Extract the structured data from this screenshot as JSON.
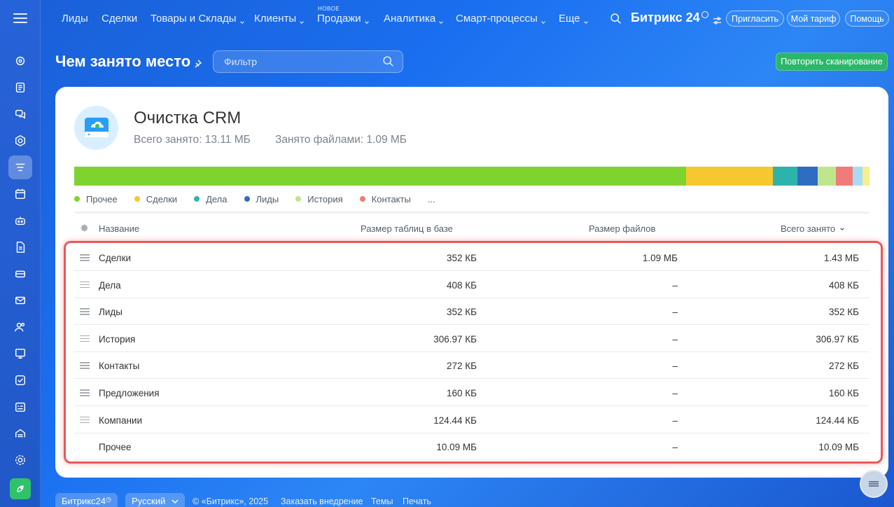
{
  "topnav": {
    "items": [
      {
        "label": "Лиды",
        "dropdown": false
      },
      {
        "label": "Сделки",
        "dropdown": false
      },
      {
        "label": "Товары и Склады",
        "dropdown": true
      },
      {
        "label": "Клиенты",
        "dropdown": true
      },
      {
        "label": "Продажи",
        "dropdown": true,
        "badge": "НОВОЕ"
      },
      {
        "label": "Аналитика",
        "dropdown": true
      },
      {
        "label": "Смарт-процессы",
        "dropdown": true
      },
      {
        "label": "Еще",
        "dropdown": true
      }
    ],
    "brand": "Битрикс 24",
    "invite_label": "Пригласить",
    "tariff_label": "Мой тариф",
    "help_label": "Помощь"
  },
  "sidebar": {
    "icons": [
      "chat-bubbles-icon",
      "feed-icon",
      "messenger-icon",
      "hexagon-icon",
      "crm-icon",
      "calendar-icon",
      "robot-icon",
      "document-icon",
      "store-icon",
      "mail-icon",
      "users-icon",
      "presentation-icon",
      "tasks-icon",
      "schedule-icon",
      "sites-icon",
      "settings-icon",
      "rocket-icon"
    ],
    "active": "crm-icon"
  },
  "page": {
    "title": "Чем занято место",
    "filter_placeholder": "Фильтр",
    "rescan_label": "Повторить сканирование"
  },
  "crm": {
    "title": "Очистка CRM",
    "total_label": "Всего занято: 13.11 МБ",
    "files_label": "Занято файлами: 1.09 МБ"
  },
  "usage_bar": [
    {
      "name": "Прочее",
      "value": 10.09,
      "color": "#7fd32e"
    },
    {
      "name": "Сделки",
      "value": 1.43,
      "color": "#f5c830"
    },
    {
      "name": "Дела",
      "value": 0.4,
      "color": "#2eb3ac"
    },
    {
      "name": "Лиды",
      "value": 0.34,
      "color": "#2f6cc4"
    },
    {
      "name": "История",
      "value": 0.3,
      "color": "#bfe68c"
    },
    {
      "name": "Контакты",
      "value": 0.27,
      "color": "#f07b78"
    },
    {
      "name": "Предложения",
      "value": 0.16,
      "color": "#a7dcf6"
    },
    {
      "name": "Компании",
      "value": 0.12,
      "color": "#f6ef8e"
    }
  ],
  "legend": {
    "items": [
      {
        "label": "Прочее",
        "color": "#7fd32e"
      },
      {
        "label": "Сделки",
        "color": "#f5c830"
      },
      {
        "label": "Дела",
        "color": "#2eb3ac"
      },
      {
        "label": "Лиды",
        "color": "#2f6cc4"
      },
      {
        "label": "История",
        "color": "#bfe68c"
      },
      {
        "label": "Контакты",
        "color": "#f07b78"
      }
    ],
    "more": "..."
  },
  "table": {
    "columns": {
      "name": "Название",
      "db_size": "Размер таблиц в базе",
      "file_size": "Размер файлов",
      "total": "Всего занято"
    },
    "rows": [
      {
        "name": "Сделки",
        "db_size": "352 КБ",
        "file_size": "1.09 МБ",
        "total": "1.43 МБ",
        "draggable": true
      },
      {
        "name": "Дела",
        "db_size": "408 КБ",
        "file_size": "–",
        "total": "408 КБ",
        "draggable": true
      },
      {
        "name": "Лиды",
        "db_size": "352 КБ",
        "file_size": "–",
        "total": "352 КБ",
        "draggable": true
      },
      {
        "name": "История",
        "db_size": "306.97 КБ",
        "file_size": "–",
        "total": "306.97 КБ",
        "draggable": true
      },
      {
        "name": "Контакты",
        "db_size": "272 КБ",
        "file_size": "–",
        "total": "272 КБ",
        "draggable": true
      },
      {
        "name": "Предложения",
        "db_size": "160 КБ",
        "file_size": "–",
        "total": "160 КБ",
        "draggable": true
      },
      {
        "name": "Компании",
        "db_size": "124.44 КБ",
        "file_size": "–",
        "total": "124.44 КБ",
        "draggable": true
      },
      {
        "name": "Прочее",
        "db_size": "10.09 МБ",
        "file_size": "–",
        "total": "10.09 МБ",
        "draggable": false
      }
    ]
  },
  "footer": {
    "brand": "Битрикс24",
    "language": "Русский",
    "copyright": "© «Битрикс», 2025",
    "order_link": "Заказать внедрение",
    "themes_link": "Темы",
    "print_link": "Печать"
  }
}
